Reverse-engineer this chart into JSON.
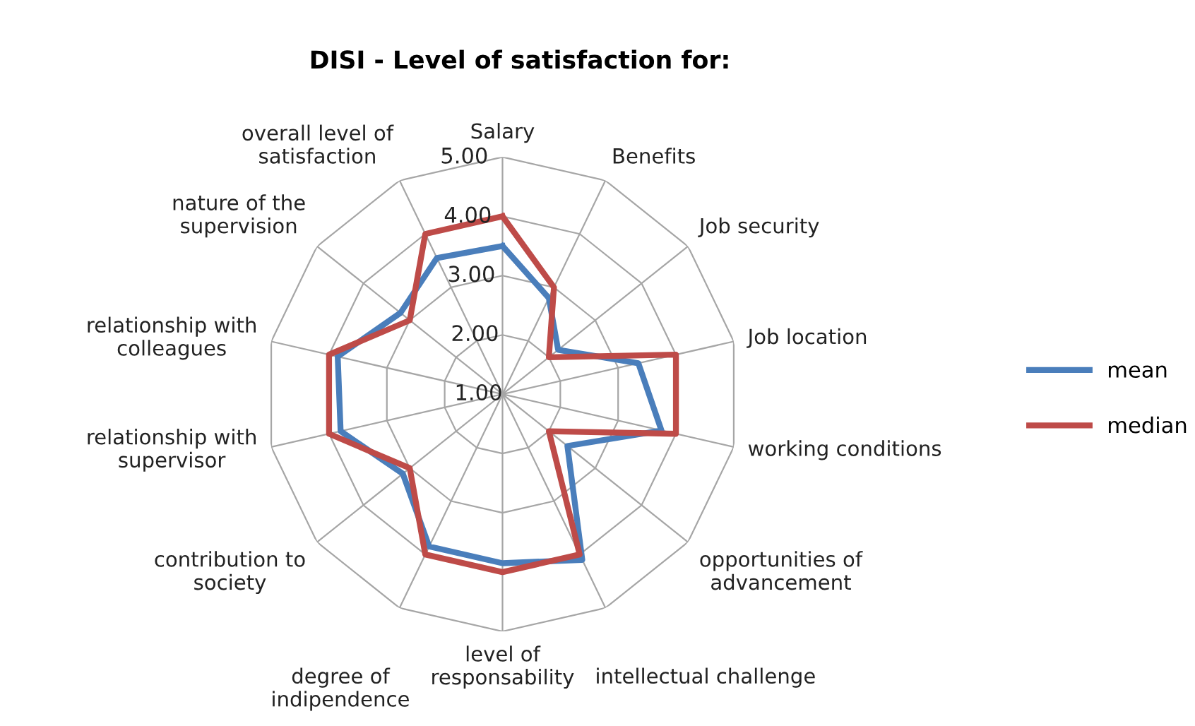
{
  "chart_data": {
    "type": "radar",
    "title": "DISI - Level of satisfaction for:",
    "categories": [
      "Salary",
      "Benefits",
      "Job security",
      "Job location",
      "working conditions",
      "opportunities of\nadvancement",
      "intellectual challenge",
      "level of\nresponsability",
      "degree of\nindipendence",
      "contribution to\nsociety",
      "relationship with\nsupervisor",
      "relationship with\ncolleagues",
      "nature of the\nsupervision",
      "overall level of\nsatisfaction"
    ],
    "series": [
      {
        "name": "mean",
        "color": "#4a7ebb",
        "values": [
          3.5,
          2.8,
          2.2,
          3.35,
          3.75,
          2.4,
          4.1,
          3.85,
          3.85,
          3.15,
          3.8,
          3.85,
          3.2,
          3.55
        ]
      },
      {
        "name": "median",
        "color": "#be4b48",
        "values": [
          4.0,
          3.0,
          2.0,
          4.0,
          4.0,
          2.0,
          4.0,
          4.0,
          4.0,
          3.0,
          4.0,
          4.0,
          3.0,
          4.0
        ]
      }
    ],
    "ylim": [
      1,
      5
    ],
    "yticks": [
      {
        "value": 1,
        "label": "1.00"
      },
      {
        "value": 2,
        "label": "2.00"
      },
      {
        "value": 3,
        "label": "3.00"
      },
      {
        "value": 4,
        "label": "4.00"
      },
      {
        "value": 5,
        "label": "5.00"
      }
    ],
    "grid": true,
    "legend": "right",
    "marker": "none"
  }
}
